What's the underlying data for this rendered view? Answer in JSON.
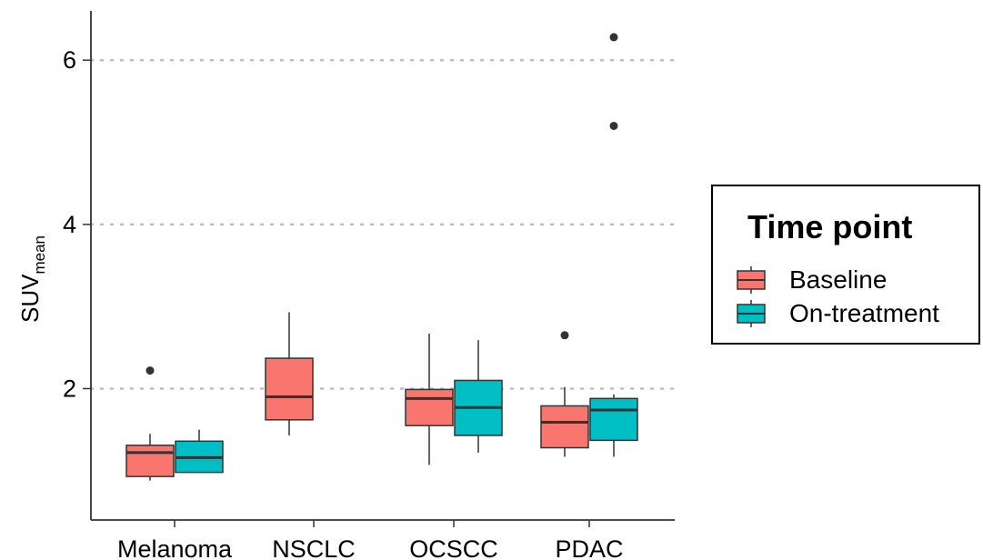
{
  "chart_data": {
    "type": "boxplot",
    "ylabel": "SUV",
    "ylabel_subscript": "mean",
    "xlabel": "",
    "categories": [
      "Melanoma",
      "NSCLC",
      "OCSCC",
      "PDAC"
    ],
    "ylim": [
      0.4,
      6.6
    ],
    "yticks": [
      2,
      4,
      6
    ],
    "grid": "horizontal-dotted-major",
    "legend": {
      "title": "Time point",
      "placement": "right",
      "entries": [
        "Baseline",
        "On-treatment"
      ]
    },
    "series": [
      {
        "name": "Baseline",
        "color": "#F8766D",
        "boxes": [
          {
            "category": "Melanoma",
            "whisker_low": 0.88,
            "q1": 0.93,
            "median": 1.22,
            "q3": 1.31,
            "whisker_high": 1.45,
            "outliers": [
              2.22
            ]
          },
          {
            "category": "NSCLC",
            "whisker_low": 1.43,
            "q1": 1.62,
            "median": 1.9,
            "q3": 2.37,
            "whisker_high": 2.93,
            "outliers": []
          },
          {
            "category": "OCSCC",
            "whisker_low": 1.07,
            "q1": 1.55,
            "median": 1.88,
            "q3": 1.99,
            "whisker_high": 2.67,
            "outliers": []
          },
          {
            "category": "PDAC",
            "whisker_low": 1.17,
            "q1": 1.28,
            "median": 1.59,
            "q3": 1.79,
            "whisker_high": 2.02,
            "outliers": [
              2.65
            ]
          }
        ]
      },
      {
        "name": "On-treatment",
        "color": "#00BFC4",
        "boxes": [
          {
            "category": "Melanoma",
            "whisker_low": 0.98,
            "q1": 0.98,
            "median": 1.16,
            "q3": 1.36,
            "whisker_high": 1.5,
            "outliers": []
          },
          {
            "category": "NSCLC",
            "empty": true
          },
          {
            "category": "OCSCC",
            "whisker_low": 1.22,
            "q1": 1.43,
            "median": 1.77,
            "q3": 2.1,
            "whisker_high": 2.59,
            "outliers": []
          },
          {
            "category": "PDAC",
            "whisker_low": 1.17,
            "q1": 1.37,
            "median": 1.74,
            "q3": 1.88,
            "whisker_high": 1.93,
            "outliers": [
              5.2,
              6.28
            ]
          }
        ]
      }
    ]
  }
}
